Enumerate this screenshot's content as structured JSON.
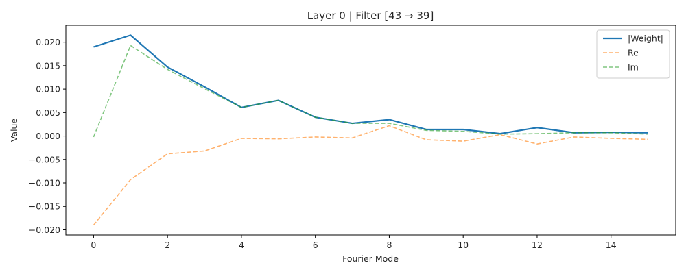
{
  "chart_data": {
    "type": "line",
    "title": "Layer 0 | Filter [43 → 39]",
    "xlabel": "Fourier Mode",
    "ylabel": "Value",
    "xlim": [
      -0.75,
      15.75
    ],
    "ylim": [
      -0.0211,
      0.0236
    ],
    "x_ticks": [
      0,
      2,
      4,
      6,
      8,
      10,
      12,
      14
    ],
    "x_tick_labels": [
      "0",
      "2",
      "4",
      "6",
      "8",
      "10",
      "12",
      "14"
    ],
    "y_ticks": [
      -0.02,
      -0.015,
      -0.01,
      -0.005,
      0.0,
      0.005,
      0.01,
      0.015,
      0.02
    ],
    "y_tick_labels": [
      "−0.020",
      "−0.015",
      "−0.010",
      "−0.005",
      "0.000",
      "0.005",
      "0.010",
      "0.015",
      "0.020"
    ],
    "grid": false,
    "legend_position": "top-right",
    "x": [
      0,
      1,
      2,
      3,
      4,
      5,
      6,
      7,
      8,
      9,
      10,
      11,
      12,
      13,
      14,
      15
    ],
    "series": [
      {
        "name": "|Weight|",
        "color": "#1f77b4",
        "style": "solid",
        "values": [
          0.019,
          0.0215,
          0.0147,
          0.0105,
          0.0061,
          0.0076,
          0.004,
          0.0027,
          0.0035,
          0.0014,
          0.0014,
          0.0005,
          0.0018,
          0.0007,
          0.0008,
          0.0007
        ]
      },
      {
        "name": "Re",
        "color": "#ff7f0e",
        "style": "dashed",
        "values": [
          -0.019,
          -0.0093,
          -0.0038,
          -0.0032,
          -0.0005,
          -0.0006,
          -0.0002,
          -0.0004,
          0.0022,
          -0.0008,
          -0.0011,
          0.0003,
          -0.0017,
          -0.0002,
          -0.0005,
          -0.0007
        ]
      },
      {
        "name": "Im",
        "color": "#2ca02c",
        "style": "dashed",
        "values": [
          -0.0002,
          0.0193,
          0.0142,
          0.0101,
          0.0061,
          0.0076,
          0.004,
          0.0027,
          0.0027,
          0.0012,
          0.001,
          0.0004,
          0.0005,
          0.0007,
          0.0007,
          0.0004
        ]
      }
    ]
  }
}
